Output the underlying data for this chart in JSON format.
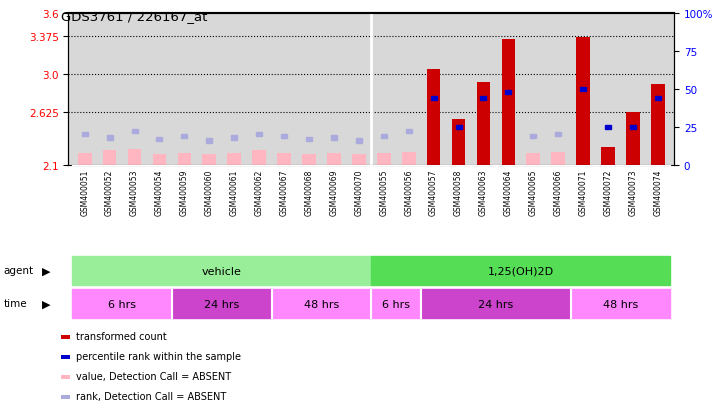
{
  "title": "GDS3761 / 226167_at",
  "samples": [
    "GSM400051",
    "GSM400052",
    "GSM400053",
    "GSM400054",
    "GSM400059",
    "GSM400060",
    "GSM400061",
    "GSM400062",
    "GSM400067",
    "GSM400068",
    "GSM400069",
    "GSM400070",
    "GSM400055",
    "GSM400056",
    "GSM400057",
    "GSM400058",
    "GSM400063",
    "GSM400064",
    "GSM400065",
    "GSM400066",
    "GSM400071",
    "GSM400072",
    "GSM400073",
    "GSM400074"
  ],
  "transformed_count": [
    2.19,
    2.21,
    2.22,
    2.18,
    2.2,
    2.18,
    2.19,
    2.21,
    2.19,
    2.18,
    2.19,
    2.18,
    2.2,
    2.21,
    3.05,
    2.55,
    2.92,
    3.35,
    2.19,
    2.2,
    3.37,
    2.27,
    2.62,
    2.9
  ],
  "absent_value": [
    2.22,
    2.24,
    2.25,
    2.21,
    2.22,
    2.21,
    2.22,
    2.24,
    2.22,
    2.21,
    2.22,
    2.21,
    2.22,
    2.23,
    0,
    0,
    0,
    0,
    2.22,
    2.23,
    0,
    2.28,
    0,
    0
  ],
  "percentile_rank": [
    20,
    18,
    22,
    17,
    19,
    16,
    18,
    20,
    19,
    17,
    18,
    16,
    19,
    22,
    44,
    25,
    44,
    48,
    19,
    20,
    50,
    25,
    25,
    44
  ],
  "absent_rank": [
    20,
    18,
    22,
    17,
    19,
    16,
    18,
    20,
    19,
    17,
    18,
    16,
    19,
    22,
    0,
    0,
    0,
    0,
    19,
    20,
    0,
    25,
    0,
    0
  ],
  "is_absent": [
    true,
    true,
    true,
    true,
    true,
    true,
    true,
    true,
    true,
    true,
    true,
    true,
    true,
    true,
    false,
    false,
    false,
    false,
    true,
    true,
    false,
    false,
    false,
    false
  ],
  "ylim_left": [
    2.1,
    3.6
  ],
  "ylim_right": [
    0,
    100
  ],
  "yticks_left": [
    2.1,
    2.625,
    3.0,
    3.375,
    3.6
  ],
  "yticks_right": [
    0,
    25,
    50,
    75,
    100
  ],
  "hlines": [
    2.625,
    3.0,
    3.375
  ],
  "agent_groups": [
    {
      "label": "vehicle",
      "start": 0,
      "end": 12,
      "color": "#99EE99"
    },
    {
      "label": "1,25(OH)2D",
      "start": 12,
      "end": 24,
      "color": "#55DD55"
    }
  ],
  "time_groups": [
    {
      "label": "6 hrs",
      "start": 0,
      "end": 4,
      "color": "#FF88FF"
    },
    {
      "label": "24 hrs",
      "start": 4,
      "end": 8,
      "color": "#CC44CC"
    },
    {
      "label": "48 hrs",
      "start": 8,
      "end": 12,
      "color": "#FF88FF"
    },
    {
      "label": "6 hrs",
      "start": 12,
      "end": 14,
      "color": "#FF88FF"
    },
    {
      "label": "24 hrs",
      "start": 14,
      "end": 20,
      "color": "#CC44CC"
    },
    {
      "label": "48 hrs",
      "start": 20,
      "end": 24,
      "color": "#FF88FF"
    }
  ],
  "bar_color_present": "#CC0000",
  "bar_color_absent": "#FFB6C1",
  "rank_color_present": "#0000CC",
  "rank_color_absent": "#AAAADD",
  "bar_width": 0.55,
  "chart_bg": "#D8D8D8",
  "legend_items": [
    {
      "color": "#CC0000",
      "label": "transformed count",
      "row": 0,
      "col": 0
    },
    {
      "color": "#0000CC",
      "label": "percentile rank within the sample",
      "row": 1,
      "col": 0
    },
    {
      "color": "#FFB6C1",
      "label": "value, Detection Call = ABSENT",
      "row": 2,
      "col": 0
    },
    {
      "color": "#AAAADD",
      "label": "rank, Detection Call = ABSENT",
      "row": 3,
      "col": 0
    }
  ]
}
